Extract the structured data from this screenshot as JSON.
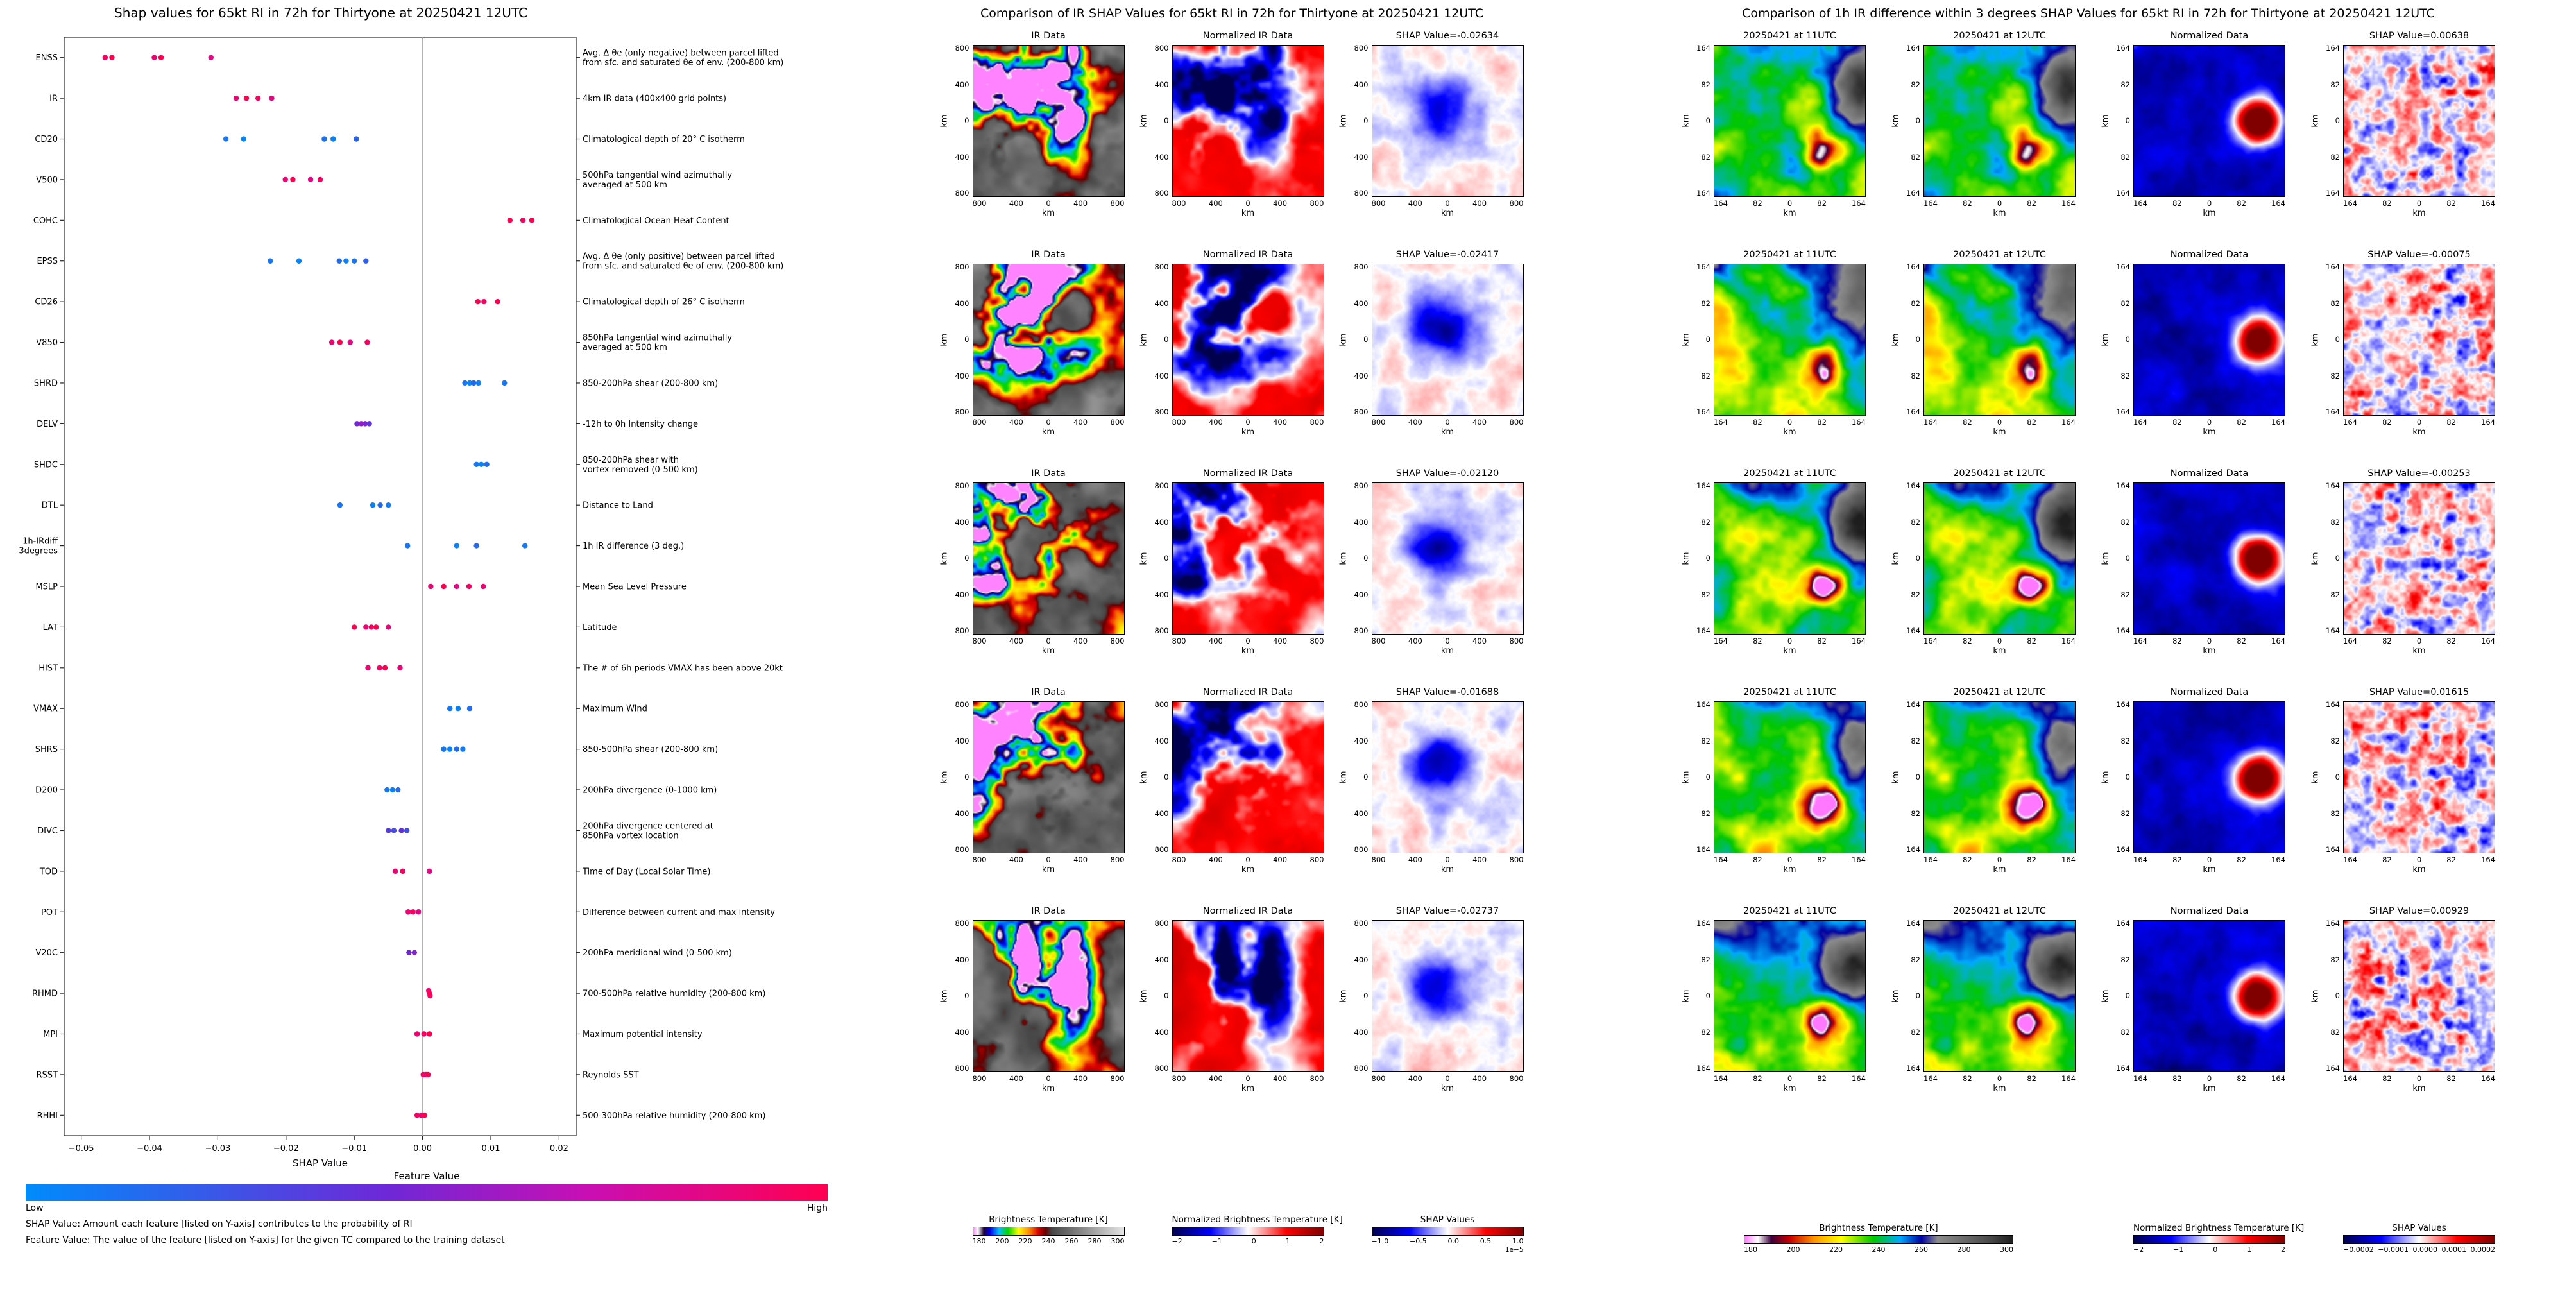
{
  "beeswarm": {
    "title": "Shap values for 65kt RI in 72h for Thirtyone at 20250421 12UTC",
    "xlabel": "SHAP Value",
    "xticks": [
      "−0.05",
      "−0.04",
      "−0.03",
      "−0.02",
      "−0.01",
      "0.00",
      "0.01",
      "0.02"
    ],
    "xtick_values": [
      -0.05,
      -0.04,
      -0.03,
      -0.02,
      -0.01,
      0,
      0.01,
      0.02
    ],
    "colorbar": {
      "title": "Feature Value",
      "low": "Low",
      "high": "High",
      "colors": [
        "#008bfb",
        "#6e28d7",
        "#c80fb4",
        "#ff0051"
      ]
    },
    "footnote1": "SHAP Value: Amount each feature [listed on Y-axis] contributes to the probability of RI",
    "footnote2": "Feature Value: The value of the feature [listed on Y-axis] for the given TC compared to the training dataset",
    "features": [
      {
        "name": "ENSS",
        "desc": [
          "Avg. Δ θe (only negative) between parcel lifted",
          "from sfc. and saturated θe of env. (200-800 km)"
        ],
        "points": [
          [
            -0.0465,
            0.95
          ],
          [
            -0.0455,
            1
          ],
          [
            -0.0393,
            0.9
          ],
          [
            -0.0383,
            1
          ],
          [
            -0.031,
            0.85
          ]
        ]
      },
      {
        "name": "IR",
        "desc": [
          "4km IR data (400x400 grid points)"
        ],
        "points": [
          [
            -0.0273,
            0.9
          ],
          [
            -0.0258,
            1
          ],
          [
            -0.0241,
            0.95
          ],
          [
            -0.0221,
            0.85
          ]
        ]
      },
      {
        "name": "CD20",
        "desc": [
          "Climatological depth of 20° C isotherm"
        ],
        "points": [
          [
            -0.0288,
            0.1
          ],
          [
            -0.0262,
            0.02
          ],
          [
            -0.0144,
            0.12
          ],
          [
            -0.0131,
            0.05
          ],
          [
            -0.0097,
            0.18
          ]
        ]
      },
      {
        "name": "V500",
        "desc": [
          "500hPa tangential wind azimuthally",
          "averaged at 500 km"
        ],
        "points": [
          [
            -0.0201,
            0.9
          ],
          [
            -0.019,
            1
          ],
          [
            -0.0164,
            0.85
          ],
          [
            -0.015,
            0.95
          ]
        ]
      },
      {
        "name": "COHC",
        "desc": [
          "Climatological Ocean Heat Content"
        ],
        "points": [
          [
            0.0128,
            1
          ],
          [
            0.0147,
            0.95
          ],
          [
            0.016,
            1
          ]
        ]
      },
      {
        "name": "EPSS",
        "desc": [
          "Avg. Δ θe (only positive) between parcel lifted",
          "from sfc. and saturated θe of env. (200-800 km)"
        ],
        "points": [
          [
            -0.0223,
            0.1
          ],
          [
            -0.0181,
            0.03
          ],
          [
            -0.0122,
            0.15
          ],
          [
            -0.0112,
            0.06
          ],
          [
            -0.01,
            0.1
          ],
          [
            -0.0083,
            0.2
          ]
        ]
      },
      {
        "name": "CD26",
        "desc": [
          "Climatological depth of 26° C isotherm"
        ],
        "points": [
          [
            0.0081,
            1
          ],
          [
            0.009,
            0.95
          ],
          [
            0.011,
            1
          ]
        ]
      },
      {
        "name": "V850",
        "desc": [
          "850hPa tangential wind azimuthally",
          "averaged at 500 km"
        ],
        "points": [
          [
            -0.0133,
            0.9
          ],
          [
            -0.0121,
            1
          ],
          [
            -0.0106,
            0.85
          ],
          [
            -0.0081,
            0.95
          ]
        ]
      },
      {
        "name": "SHRD",
        "desc": [
          "850-200hPa shear (200-800 km)"
        ],
        "points": [
          [
            0.0062,
            0.1
          ],
          [
            0.0069,
            0.02
          ],
          [
            0.0075,
            0.15
          ],
          [
            0.0082,
            0.06
          ],
          [
            0.012,
            0.1
          ]
        ]
      },
      {
        "name": "DELV",
        "desc": [
          "-12h to 0h Intensity change"
        ],
        "points": [
          [
            -0.0096,
            0.45
          ],
          [
            -0.009,
            0.55
          ],
          [
            -0.0084,
            0.5
          ],
          [
            -0.0078,
            0.4
          ]
        ]
      },
      {
        "name": "SHDC",
        "desc": [
          "850-200hPa shear with",
          "vortex removed (0-500 km)"
        ],
        "points": [
          [
            0.0079,
            0.1
          ],
          [
            0.0086,
            0.04
          ],
          [
            0.0094,
            0.14
          ]
        ]
      },
      {
        "name": "DTL",
        "desc": [
          "Distance to Land"
        ],
        "points": [
          [
            -0.0121,
            0.1
          ],
          [
            -0.0073,
            0.05
          ],
          [
            -0.0062,
            0.15
          ],
          [
            -0.005,
            0.08
          ]
        ]
      },
      {
        "name": "1h-IRdiff\n3degrees",
        "desc": [
          "1h IR difference (3 deg.)"
        ],
        "points": [
          [
            -0.0022,
            0.1
          ],
          [
            0.005,
            0.05
          ],
          [
            0.0079,
            0.15
          ],
          [
            0.015,
            0.08
          ]
        ]
      },
      {
        "name": "MSLP",
        "desc": [
          "Mean Sea Level Pressure"
        ],
        "points": [
          [
            0.0012,
            0.9
          ],
          [
            0.0031,
            1
          ],
          [
            0.005,
            0.85
          ],
          [
            0.0068,
            0.95
          ],
          [
            0.0089,
            0.9
          ]
        ]
      },
      {
        "name": "LAT",
        "desc": [
          "Latitude"
        ],
        "points": [
          [
            -0.01,
            1
          ],
          [
            -0.0083,
            0.9
          ],
          [
            -0.0075,
            0.95
          ],
          [
            -0.0068,
            1
          ],
          [
            -0.005,
            0.88
          ]
        ]
      },
      {
        "name": "HIST",
        "desc": [
          "The # of 6h periods VMAX has been above 20kt"
        ],
        "points": [
          [
            -0.008,
            0.9
          ],
          [
            -0.0063,
            0.95
          ],
          [
            -0.0055,
            1
          ],
          [
            -0.0033,
            0.88
          ]
        ]
      },
      {
        "name": "VMAX",
        "desc": [
          "Maximum Wind"
        ],
        "points": [
          [
            0.004,
            0.1
          ],
          [
            0.0052,
            0.04
          ],
          [
            0.0069,
            0.14
          ]
        ]
      },
      {
        "name": "SHRS",
        "desc": [
          "850-500hPa shear (200-800 km)"
        ],
        "points": [
          [
            0.0031,
            0.1
          ],
          [
            0.004,
            0.04
          ],
          [
            0.005,
            0.15
          ],
          [
            0.0059,
            0.08
          ]
        ]
      },
      {
        "name": "D200",
        "desc": [
          "200hPa divergence (0-1000 km)"
        ],
        "points": [
          [
            -0.0052,
            0.1
          ],
          [
            -0.0044,
            0.04
          ],
          [
            -0.0036,
            0.15
          ]
        ]
      },
      {
        "name": "DIVC",
        "desc": [
          "200hPa divergence centered at",
          "850hPa vortex location"
        ],
        "points": [
          [
            -0.005,
            0.35
          ],
          [
            -0.0042,
            0.3
          ],
          [
            -0.0031,
            0.4
          ],
          [
            -0.0023,
            0.28
          ]
        ]
      },
      {
        "name": "TOD",
        "desc": [
          "Time of Day (Local Solar Time)"
        ],
        "points": [
          [
            -0.004,
            0.9
          ],
          [
            -0.0029,
            0.95
          ],
          [
            0.001,
            0.85
          ]
        ]
      },
      {
        "name": "POT",
        "desc": [
          "Difference between current and max intensity"
        ],
        "points": [
          [
            -0.0021,
            0.9
          ],
          [
            -0.0014,
            0.95
          ],
          [
            -0.0006,
            0.85
          ]
        ]
      },
      {
        "name": "V20C",
        "desc": [
          "200hPa meridional wind (0-500 km)"
        ],
        "points": [
          [
            -0.002,
            0.45
          ],
          [
            -0.0012,
            0.5
          ]
        ]
      },
      {
        "name": "RHMD",
        "desc": [
          "700-500hPa relative humidity (200-800 km)"
        ],
        "points": [
          [
            0.0009,
            0.9,
            -4
          ],
          [
            0.001,
            1,
            0
          ],
          [
            0.0011,
            0.95,
            4
          ]
        ]
      },
      {
        "name": "MPI",
        "desc": [
          "Maximum potential intensity"
        ],
        "points": [
          [
            -0.0008,
            0.9
          ],
          [
            0.0002,
            0.95
          ],
          [
            0.001,
            1
          ]
        ]
      },
      {
        "name": "RSST",
        "desc": [
          "Reynolds SST"
        ],
        "points": [
          [
            0.0001,
            0.95
          ],
          [
            0.0005,
            0.9
          ],
          [
            0.0008,
            1
          ]
        ]
      },
      {
        "name": "RHHI",
        "desc": [
          "500-300hPa relative humidity (200-800 km)"
        ],
        "points": [
          [
            -0.0008,
            0.95
          ],
          [
            -0.0002,
            0.9
          ],
          [
            0.0003,
            1
          ]
        ]
      }
    ]
  },
  "ir_panel": {
    "title": "Comparison of IR SHAP Values for 65kt RI in 72h for Thirtyone at 20250421 12UTC",
    "col_titles": [
      "IR Data",
      "Normalized IR Data"
    ],
    "shap_labels": [
      "SHAP Value=-0.02634",
      "SHAP Value=-0.02417",
      "SHAP Value=-0.02120",
      "SHAP Value=-0.01688",
      "SHAP Value=-0.02737"
    ],
    "ticks": [
      "800",
      "400",
      "0",
      "400",
      "800"
    ],
    "axis_label": "km",
    "colorbars": [
      {
        "label": "Brightness Temperature [K]",
        "ticks": [
          "180",
          "200",
          "220",
          "240",
          "260",
          "280",
          "300"
        ],
        "grad": "ir"
      },
      {
        "label": "Normalized Brightness Temperature [K]",
        "ticks": [
          "−2",
          "−1",
          "0",
          "1",
          "2"
        ],
        "grad": "seismic"
      },
      {
        "label": "SHAP Values",
        "ticks": [
          "−1.0",
          "−0.5",
          "0.0",
          "0.5",
          "1.0"
        ],
        "grad": "seismic",
        "exp": "1e−5"
      }
    ]
  },
  "irdiff_panel": {
    "title": "Comparison of 1h IR difference within 3 degrees SHAP Values for 65kt RI in 72h for Thirtyone at 20250421 12UTC",
    "col_titles": [
      "20250421 at 11UTC",
      "20250421 at 12UTC",
      "Normalized Data"
    ],
    "shap_labels": [
      "SHAP Value=0.00638",
      "SHAP Value=-0.00075",
      "SHAP Value=-0.00253",
      "SHAP Value=0.01615",
      "SHAP Value=0.00929"
    ],
    "ticks": [
      "164",
      "82",
      "0",
      "82",
      "164"
    ],
    "axis_label": "km",
    "colorbars": [
      {
        "label": "Brightness Temperature [K]",
        "ticks": [
          "180",
          "200",
          "220",
          "240",
          "260",
          "280",
          "300"
        ],
        "grad": "rightbt",
        "wide": true
      },
      {
        "label": "Normalized Brightness Temperature [K]",
        "ticks": [
          "−2",
          "−1",
          "0",
          "1",
          "2"
        ],
        "grad": "seismic"
      },
      {
        "label": "SHAP Values",
        "ticks": [
          "−0.0002",
          "−0.0001",
          "0.0000",
          "0.0001",
          "0.0002"
        ],
        "grad": "seismic"
      }
    ]
  },
  "chart_data": {
    "type": "scatter",
    "title": "Shap values for 65kt RI in 72h for Thirtyone at 20250421 12UTC",
    "xlabel": "SHAP Value",
    "xlim": [
      -0.0525,
      0.0225
    ],
    "legend_position": "bottom-colorbar",
    "grid": false,
    "series_note": "One row per feature; x = SHAP value of each ensemble member point, c = relative feature value (0=Low/blue, 1=High/pink)"
  }
}
